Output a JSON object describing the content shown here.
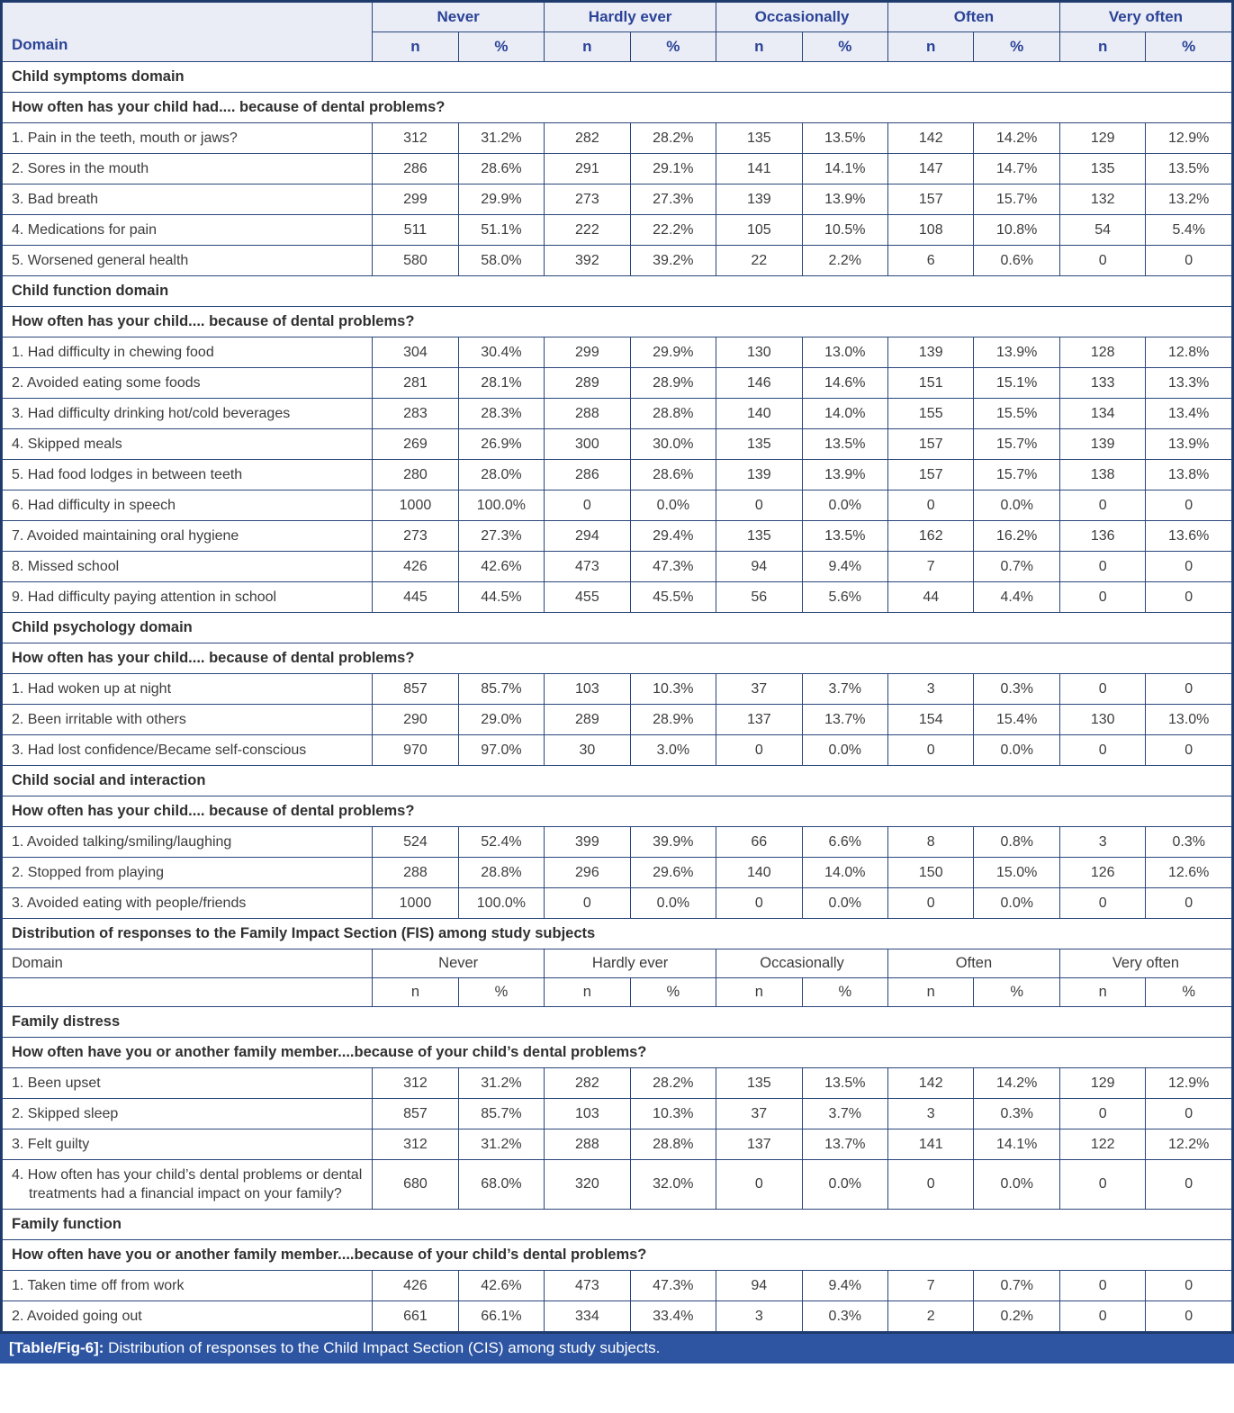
{
  "table": {
    "header": {
      "domain_label": "Domain",
      "groups": [
        "Never",
        "Hardly ever",
        "Occasionally",
        "Often",
        "Very often"
      ],
      "sub": [
        "n",
        "%"
      ]
    },
    "rows": [
      {
        "type": "section",
        "label": "Child symptoms domain"
      },
      {
        "type": "question",
        "label": "How often has your child had.... because of dental problems?"
      },
      {
        "type": "data",
        "label": "1. Pain in the teeth, mouth or jaws?",
        "values": [
          "312",
          "31.2%",
          "282",
          "28.2%",
          "135",
          "13.5%",
          "142",
          "14.2%",
          "129",
          "12.9%"
        ]
      },
      {
        "type": "data",
        "label": "2. Sores in the mouth",
        "values": [
          "286",
          "28.6%",
          "291",
          "29.1%",
          "141",
          "14.1%",
          "147",
          "14.7%",
          "135",
          "13.5%"
        ]
      },
      {
        "type": "data",
        "label": "3. Bad breath",
        "values": [
          "299",
          "29.9%",
          "273",
          "27.3%",
          "139",
          "13.9%",
          "157",
          "15.7%",
          "132",
          "13.2%"
        ]
      },
      {
        "type": "data",
        "label": "4. Medications for pain",
        "values": [
          "511",
          "51.1%",
          "222",
          "22.2%",
          "105",
          "10.5%",
          "108",
          "10.8%",
          "54",
          "5.4%"
        ]
      },
      {
        "type": "data",
        "label": "5. Worsened general health",
        "values": [
          "580",
          "58.0%",
          "392",
          "39.2%",
          "22",
          "2.2%",
          "6",
          "0.6%",
          "0",
          "0"
        ]
      },
      {
        "type": "section",
        "label": "Child function domain"
      },
      {
        "type": "question",
        "label": "How often has your child.... because of dental problems?"
      },
      {
        "type": "data",
        "label": "1. Had difficulty in chewing food",
        "values": [
          "304",
          "30.4%",
          "299",
          "29.9%",
          "130",
          "13.0%",
          "139",
          "13.9%",
          "128",
          "12.8%"
        ]
      },
      {
        "type": "data",
        "label": "2. Avoided eating some foods",
        "values": [
          "281",
          "28.1%",
          "289",
          "28.9%",
          "146",
          "14.6%",
          "151",
          "15.1%",
          "133",
          "13.3%"
        ]
      },
      {
        "type": "data",
        "label": "3. Had difficulty drinking hot/cold beverages",
        "values": [
          "283",
          "28.3%",
          "288",
          "28.8%",
          "140",
          "14.0%",
          "155",
          "15.5%",
          "134",
          "13.4%"
        ]
      },
      {
        "type": "data",
        "label": "4. Skipped meals",
        "values": [
          "269",
          "26.9%",
          "300",
          "30.0%",
          "135",
          "13.5%",
          "157",
          "15.7%",
          "139",
          "13.9%"
        ]
      },
      {
        "type": "data",
        "label": "5. Had food lodges in between teeth",
        "values": [
          "280",
          "28.0%",
          "286",
          "28.6%",
          "139",
          "13.9%",
          "157",
          "15.7%",
          "138",
          "13.8%"
        ]
      },
      {
        "type": "data",
        "label": "6. Had difficulty in speech",
        "values": [
          "1000",
          "100.0%",
          "0",
          "0.0%",
          "0",
          "0.0%",
          "0",
          "0.0%",
          "0",
          "0"
        ]
      },
      {
        "type": "data",
        "label": "7. Avoided maintaining oral hygiene",
        "values": [
          "273",
          "27.3%",
          "294",
          "29.4%",
          "135",
          "13.5%",
          "162",
          "16.2%",
          "136",
          "13.6%"
        ]
      },
      {
        "type": "data",
        "label": "8. Missed school",
        "values": [
          "426",
          "42.6%",
          "473",
          "47.3%",
          "94",
          "9.4%",
          "7",
          "0.7%",
          "0",
          "0"
        ]
      },
      {
        "type": "data",
        "label": "9. Had difficulty paying attention in school",
        "values": [
          "445",
          "44.5%",
          "455",
          "45.5%",
          "56",
          "5.6%",
          "44",
          "4.4%",
          "0",
          "0"
        ]
      },
      {
        "type": "section",
        "label": "Child psychology domain"
      },
      {
        "type": "question",
        "label": "How often has your child.... because of dental problems?"
      },
      {
        "type": "data",
        "label": "1. Had woken up at night",
        "values": [
          "857",
          "85.7%",
          "103",
          "10.3%",
          "37",
          "3.7%",
          "3",
          "0.3%",
          "0",
          "0"
        ]
      },
      {
        "type": "data",
        "label": "2. Been irritable with others",
        "values": [
          "290",
          "29.0%",
          "289",
          "28.9%",
          "137",
          "13.7%",
          "154",
          "15.4%",
          "130",
          "13.0%"
        ]
      },
      {
        "type": "data",
        "label": "3. Had lost confidence/Became self-conscious",
        "values": [
          "970",
          "97.0%",
          "30",
          "3.0%",
          "0",
          "0.0%",
          "0",
          "0.0%",
          "0",
          "0"
        ]
      },
      {
        "type": "section",
        "label": "Child social and interaction"
      },
      {
        "type": "question",
        "label": "How often has your child.... because of dental problems?"
      },
      {
        "type": "data",
        "label": "1. Avoided talking/smiling/laughing",
        "values": [
          "524",
          "52.4%",
          "399",
          "39.9%",
          "66",
          "6.6%",
          "8",
          "0.8%",
          "3",
          "0.3%"
        ]
      },
      {
        "type": "data",
        "label": "2. Stopped from playing",
        "values": [
          "288",
          "28.8%",
          "296",
          "29.6%",
          "140",
          "14.0%",
          "150",
          "15.0%",
          "126",
          "12.6%"
        ]
      },
      {
        "type": "data",
        "label": "3. Avoided eating with people/friends",
        "values": [
          "1000",
          "100.0%",
          "0",
          "0.0%",
          "0",
          "0.0%",
          "0",
          "0.0%",
          "0",
          "0"
        ]
      },
      {
        "type": "fis-title",
        "label": "Distribution of responses to the Family Impact Section (FIS) among study subjects"
      },
      {
        "type": "subheader-groups",
        "label": "Domain",
        "groups": [
          "Never",
          "Hardly ever",
          "Occasionally",
          "Often",
          "Very often"
        ]
      },
      {
        "type": "subheader-np",
        "label": "",
        "cells": [
          "n",
          "%",
          "n",
          "%",
          "n",
          "%",
          "n",
          "%",
          "n",
          "%"
        ]
      },
      {
        "type": "section",
        "label": "Family distress"
      },
      {
        "type": "question",
        "label": "How often have you or another family member....because of your child’s dental problems?"
      },
      {
        "type": "data",
        "label": "1. Been upset",
        "values": [
          "312",
          "31.2%",
          "282",
          "28.2%",
          "135",
          "13.5%",
          "142",
          "14.2%",
          "129",
          "12.9%"
        ]
      },
      {
        "type": "data",
        "label": "2. Skipped sleep",
        "values": [
          "857",
          "85.7%",
          "103",
          "10.3%",
          "37",
          "3.7%",
          "3",
          "0.3%",
          "0",
          "0"
        ]
      },
      {
        "type": "data",
        "label": "3. Felt guilty",
        "values": [
          "312",
          "31.2%",
          "288",
          "28.8%",
          "137",
          "13.7%",
          "141",
          "14.1%",
          "122",
          "12.2%"
        ]
      },
      {
        "type": "data",
        "label": "4. How often has your child’s dental problems or dental treatments had a financial impact on your family?",
        "values": [
          "680",
          "68.0%",
          "320",
          "32.0%",
          "0",
          "0.0%",
          "0",
          "0.0%",
          "0",
          "0"
        ]
      },
      {
        "type": "section",
        "label": "Family function"
      },
      {
        "type": "question",
        "label": "How often have you or another family member....because of your child’s dental problems?"
      },
      {
        "type": "data",
        "label": "1. Taken time off from work",
        "values": [
          "426",
          "42.6%",
          "473",
          "47.3%",
          "94",
          "9.4%",
          "7",
          "0.7%",
          "0",
          "0"
        ]
      },
      {
        "type": "data",
        "label": "2. Avoided going out",
        "values": [
          "661",
          "66.1%",
          "334",
          "33.4%",
          "3",
          "0.3%",
          "2",
          "0.2%",
          "0",
          "0"
        ]
      }
    ],
    "caption": {
      "tag": "[Table/Fig-6]:",
      "text": " Distribution of responses to the Child Impact Section (CIS) among study subjects."
    },
    "colors": {
      "header_bg": "#eaedf6",
      "header_text": "#2b4397",
      "border": "#29457a",
      "caption_bg": "#2d55a2",
      "caption_text": "#ffffff"
    }
  }
}
